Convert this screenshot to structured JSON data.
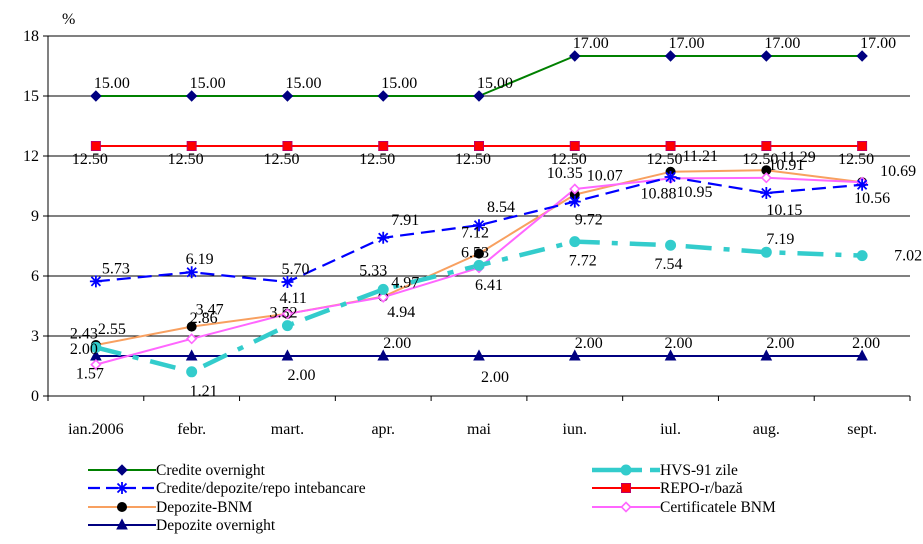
{
  "chart_data": {
    "type": "line",
    "ylabel": "%",
    "ylim": [
      0,
      18
    ],
    "yticks": [
      0,
      3,
      6,
      9,
      12,
      15,
      18
    ],
    "categories": [
      "ian.2006",
      "febr.",
      "mart.",
      "apr.",
      "mai",
      "iun.",
      "iul.",
      "aug.",
      "sept."
    ],
    "grid": "horizontal",
    "legend_position": "bottom",
    "series": [
      {
        "name": "Credite overnight",
        "color": "#008000",
        "style": "solid",
        "marker": "diamond",
        "values": [
          15.0,
          15.0,
          15.0,
          15.0,
          15.0,
          17.0,
          17.0,
          17.0,
          17.0
        ],
        "labels": [
          "15.00",
          "15.00",
          "15.00",
          "15.00",
          "15.00",
          "17.00",
          "17.00",
          "17.00",
          "17.00"
        ]
      },
      {
        "name": "REPO-r/bază",
        "color": "#ff0000",
        "style": "solid",
        "marker": "square",
        "values": [
          12.5,
          12.5,
          12.5,
          12.5,
          12.5,
          12.5,
          12.5,
          12.5,
          12.5
        ],
        "labels": [
          "12.50",
          "12.50",
          "12.50",
          "12.50",
          "12.50",
          "12.50",
          "12.50",
          "12.50",
          "12.50"
        ]
      },
      {
        "name": "Credite/depozite/repo intebancare",
        "color": "#0000ff",
        "style": "dashed",
        "marker": "star",
        "values": [
          5.73,
          6.19,
          5.7,
          7.91,
          8.54,
          9.72,
          10.95,
          10.15,
          10.56
        ],
        "labels": [
          "5.73",
          "6.19",
          "5.70",
          "7.91",
          "8.54",
          "9.72",
          "10.95",
          "10.15",
          "10.56"
        ]
      },
      {
        "name": "HVS-91 zile",
        "color": "#33cccc",
        "style": "thickdash",
        "marker": "circle",
        "values": [
          2.43,
          1.21,
          3.52,
          5.33,
          6.53,
          7.72,
          7.54,
          7.19,
          7.02
        ],
        "labels": [
          "2.43",
          "1.21",
          "3.52",
          "5.33",
          "6.53",
          "7.72",
          "7.54",
          "7.19",
          "7.02"
        ]
      },
      {
        "name": "Depozite-BNM",
        "color": "#f8a060",
        "style": "solid",
        "marker": "dot",
        "values": [
          2.55,
          3.47,
          4.11,
          4.97,
          7.12,
          10.07,
          11.21,
          11.29,
          10.69
        ],
        "labels": [
          "2.55",
          "3.47",
          "4.11",
          "4.97",
          "7.12",
          "10.07",
          "11.21",
          "11.29",
          "10.69"
        ]
      },
      {
        "name": "Certificatele BNM",
        "color": "#ff66ff",
        "style": "solid",
        "marker": "diamond-open",
        "values": [
          1.57,
          2.86,
          4.11,
          4.94,
          6.41,
          10.35,
          10.88,
          10.91,
          10.69
        ],
        "labels": [
          "1.57",
          "2.86",
          "",
          "4.94",
          "6.41",
          "10.35",
          "10.88",
          "10.91",
          ""
        ]
      },
      {
        "name": "Depozite overnight",
        "color": "#000080",
        "style": "solid",
        "marker": "triangle",
        "values": [
          2.0,
          2.0,
          2.0,
          2.0,
          2.0,
          2.0,
          2.0,
          2.0,
          2.0
        ],
        "labels": [
          "2.00",
          "",
          "2.00",
          "2.00",
          "2.00",
          "2.00",
          "2.00",
          "2.00",
          "2.00"
        ]
      }
    ]
  }
}
